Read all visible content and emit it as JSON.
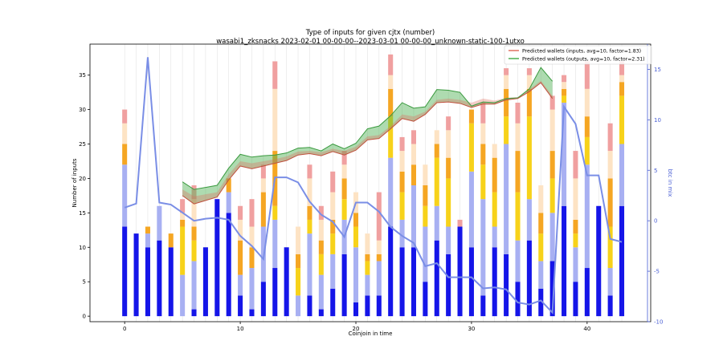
{
  "chart_data": {
    "type": "bar",
    "title_line1": "Type of inputs for given cjtx (number)",
    "title_line2": "wasabi1_zksnacks 2023-02-01 00-00-00--2023-03-01 00-00-00_unknown-static-100-1utxo",
    "xlabel": "Coinjoin in time",
    "ylabel_left": "Number of inputs",
    "ylabel_right": "btc in mix",
    "xlim": [
      -3,
      45.5
    ],
    "ylim_left": [
      -0.8,
      39.5
    ],
    "ylim_right": [
      -10,
      17.5
    ],
    "x_ticks": [
      0,
      10,
      20,
      30,
      40
    ],
    "y_ticks_left": [
      0,
      5,
      10,
      15,
      20,
      25,
      30,
      35
    ],
    "y_ticks_right": [
      -10,
      -5,
      0,
      5,
      10,
      15
    ],
    "grid": "vertical lines at each coinjoin",
    "legend_position": "top-right",
    "legend": [
      {
        "label": "Predicted wallets (inputs, avg=10, factor=1.83)",
        "color": "#e07060"
      },
      {
        "label": "Predicted wallets (outputs, avg=10, factor=2.31)",
        "color": "#4caf50"
      }
    ],
    "stack_colors": [
      "#1515e8",
      "#a8b0f2",
      "#f7d21a",
      "#f5a623",
      "#fde3c4",
      "#f0a0a0"
    ],
    "stacks": [
      [
        13,
        9,
        0,
        3,
        3,
        2
      ],
      [
        12,
        0,
        0,
        0,
        0,
        0
      ],
      [
        10,
        2,
        0,
        1,
        0,
        0
      ],
      [
        11,
        5,
        0,
        0,
        0,
        0
      ],
      [
        10,
        0,
        0,
        2,
        0,
        0
      ],
      [
        0,
        6,
        7,
        1,
        1,
        2
      ],
      [
        1,
        7,
        3,
        2,
        4,
        2
      ],
      [
        10,
        0,
        0,
        0,
        0,
        0
      ],
      [
        17,
        0,
        0,
        0,
        0,
        0
      ],
      [
        15,
        3,
        0,
        2,
        0,
        0
      ],
      [
        3,
        3,
        0,
        5,
        3,
        2
      ],
      [
        1,
        6,
        0,
        3,
        3,
        4
      ],
      [
        5,
        8,
        0,
        5,
        2,
        2
      ],
      [
        7,
        7,
        2,
        8,
        9,
        4
      ],
      [
        10,
        0,
        0,
        0,
        0,
        0
      ],
      [
        0,
        3,
        4,
        2,
        4,
        0
      ],
      [
        3,
        9,
        2,
        2,
        4,
        2
      ],
      [
        1,
        5,
        3,
        2,
        3,
        2
      ],
      [
        4,
        5,
        3,
        2,
        4,
        3
      ],
      [
        9,
        5,
        3,
        3,
        2,
        2
      ],
      [
        2,
        8,
        3,
        2,
        3,
        0
      ],
      [
        3,
        3,
        2,
        1,
        3,
        0
      ],
      [
        3,
        5,
        0,
        1,
        2,
        7
      ],
      [
        13,
        10,
        6,
        4,
        2,
        3
      ],
      [
        10,
        4,
        4,
        3,
        3,
        2
      ],
      [
        10,
        9,
        0,
        3,
        3,
        2
      ],
      [
        5,
        8,
        3,
        3,
        3,
        0
      ],
      [
        11,
        5,
        7,
        2,
        2,
        0
      ],
      [
        9,
        4,
        7,
        3,
        4,
        2
      ],
      [
        13,
        0,
        0,
        0,
        0,
        1
      ],
      [
        10,
        11,
        7,
        2,
        0,
        0
      ],
      [
        3,
        14,
        5,
        3,
        3,
        3
      ],
      [
        10,
        3,
        5,
        5,
        2,
        0
      ],
      [
        9,
        16,
        4,
        4,
        2,
        1
      ],
      [
        5,
        6,
        7,
        6,
        4,
        3
      ],
      [
        11,
        6,
        12,
        4,
        2,
        1
      ],
      [
        4,
        4,
        4,
        3,
        4,
        0
      ],
      [
        8,
        7,
        5,
        4,
        6,
        2
      ],
      [
        16,
        15,
        1,
        1,
        1,
        1
      ],
      [
        5,
        5,
        2,
        2,
        6,
        4
      ],
      [
        7,
        15,
        4,
        3,
        4,
        4
      ],
      [
        16,
        0,
        0,
        0,
        0,
        0
      ],
      [
        3,
        4,
        6,
        7,
        4,
        4
      ],
      [
        16,
        9,
        7,
        2,
        1,
        2
      ]
    ],
    "btc_in_mix": {
      "x": [
        0,
        1,
        2,
        3,
        4,
        5,
        6,
        7,
        8,
        9,
        10,
        11,
        12,
        13,
        14,
        15,
        16,
        17,
        18,
        19,
        20,
        21,
        22,
        23,
        24,
        25,
        26,
        27,
        28,
        29,
        30,
        31,
        32,
        33,
        34,
        35,
        36,
        37,
        38,
        39,
        40,
        41,
        42,
        43
      ],
      "y": [
        1.3,
        1.7,
        16.2,
        1.8,
        1.6,
        0.8,
        0.0,
        0.2,
        0.3,
        0.1,
        -1.5,
        -2.5,
        -3.8,
        4.3,
        4.3,
        3.8,
        1.9,
        0.6,
        -0.1,
        -1.6,
        1.8,
        1.8,
        0.9,
        -0.6,
        -1.5,
        -2.2,
        -4.5,
        -4.2,
        -5.6,
        -5.6,
        -5.6,
        -6.7,
        -6.6,
        -6.8,
        -8.1,
        -8.3,
        -7.9,
        -9.1,
        11.3,
        9.6,
        4.5,
        4.5,
        -1.8,
        -2.1
      ],
      "color": "#7a8ee6"
    },
    "predicted_inputs": {
      "x": [
        5,
        6,
        7,
        8,
        9,
        10,
        11,
        12,
        13,
        14,
        15,
        16,
        17,
        18,
        19,
        20,
        21,
        22,
        23,
        24,
        25,
        26,
        27,
        28,
        29,
        30,
        31,
        32,
        33,
        34,
        35,
        36,
        37
      ],
      "y": [
        17.5,
        16.3,
        16.8,
        17.3,
        19.8,
        21.8,
        21.4,
        21.8,
        22.2,
        22.6,
        23.4,
        23.6,
        23.3,
        23.9,
        23.4,
        24.1,
        25.6,
        25.8,
        27.2,
        28.7,
        28.3,
        29.3,
        31.0,
        31.1,
        30.9,
        30.3,
        30.8,
        30.8,
        31.4,
        31.6,
        32.6,
        33.9,
        31.6
      ],
      "upper": [
        18.4,
        17.4,
        17.7,
        18.0,
        20.6,
        22.5,
        22.2,
        22.5,
        22.8,
        23.2,
        23.9,
        24.0,
        23.8,
        24.3,
        24.0,
        24.6,
        26.1,
        26.3,
        27.6,
        29.3,
        29.0,
        29.7,
        31.4,
        31.6,
        31.4,
        31.0,
        31.6,
        31.3,
        31.7,
        31.8,
        32.9,
        34.2,
        32.0
      ]
    },
    "predicted_outputs": {
      "x": [
        5,
        6,
        7,
        8,
        9,
        10,
        11,
        12,
        13,
        14,
        15,
        16,
        17,
        18,
        19,
        20,
        21,
        22,
        23,
        24,
        25,
        26,
        27,
        28,
        29,
        30,
        31,
        32,
        33,
        34,
        35,
        36,
        37
      ],
      "y": [
        19.5,
        18.4,
        18.7,
        19.0,
        21.5,
        23.5,
        23.1,
        23.3,
        23.4,
        23.7,
        24.4,
        24.5,
        24.0,
        25.0,
        24.3,
        25.1,
        27.2,
        27.6,
        29.1,
        31.0,
        30.2,
        30.4,
        32.9,
        32.8,
        32.5,
        30.5,
        31.1,
        31.0,
        31.6,
        31.7,
        33.0,
        36.1,
        34.1
      ]
    }
  }
}
